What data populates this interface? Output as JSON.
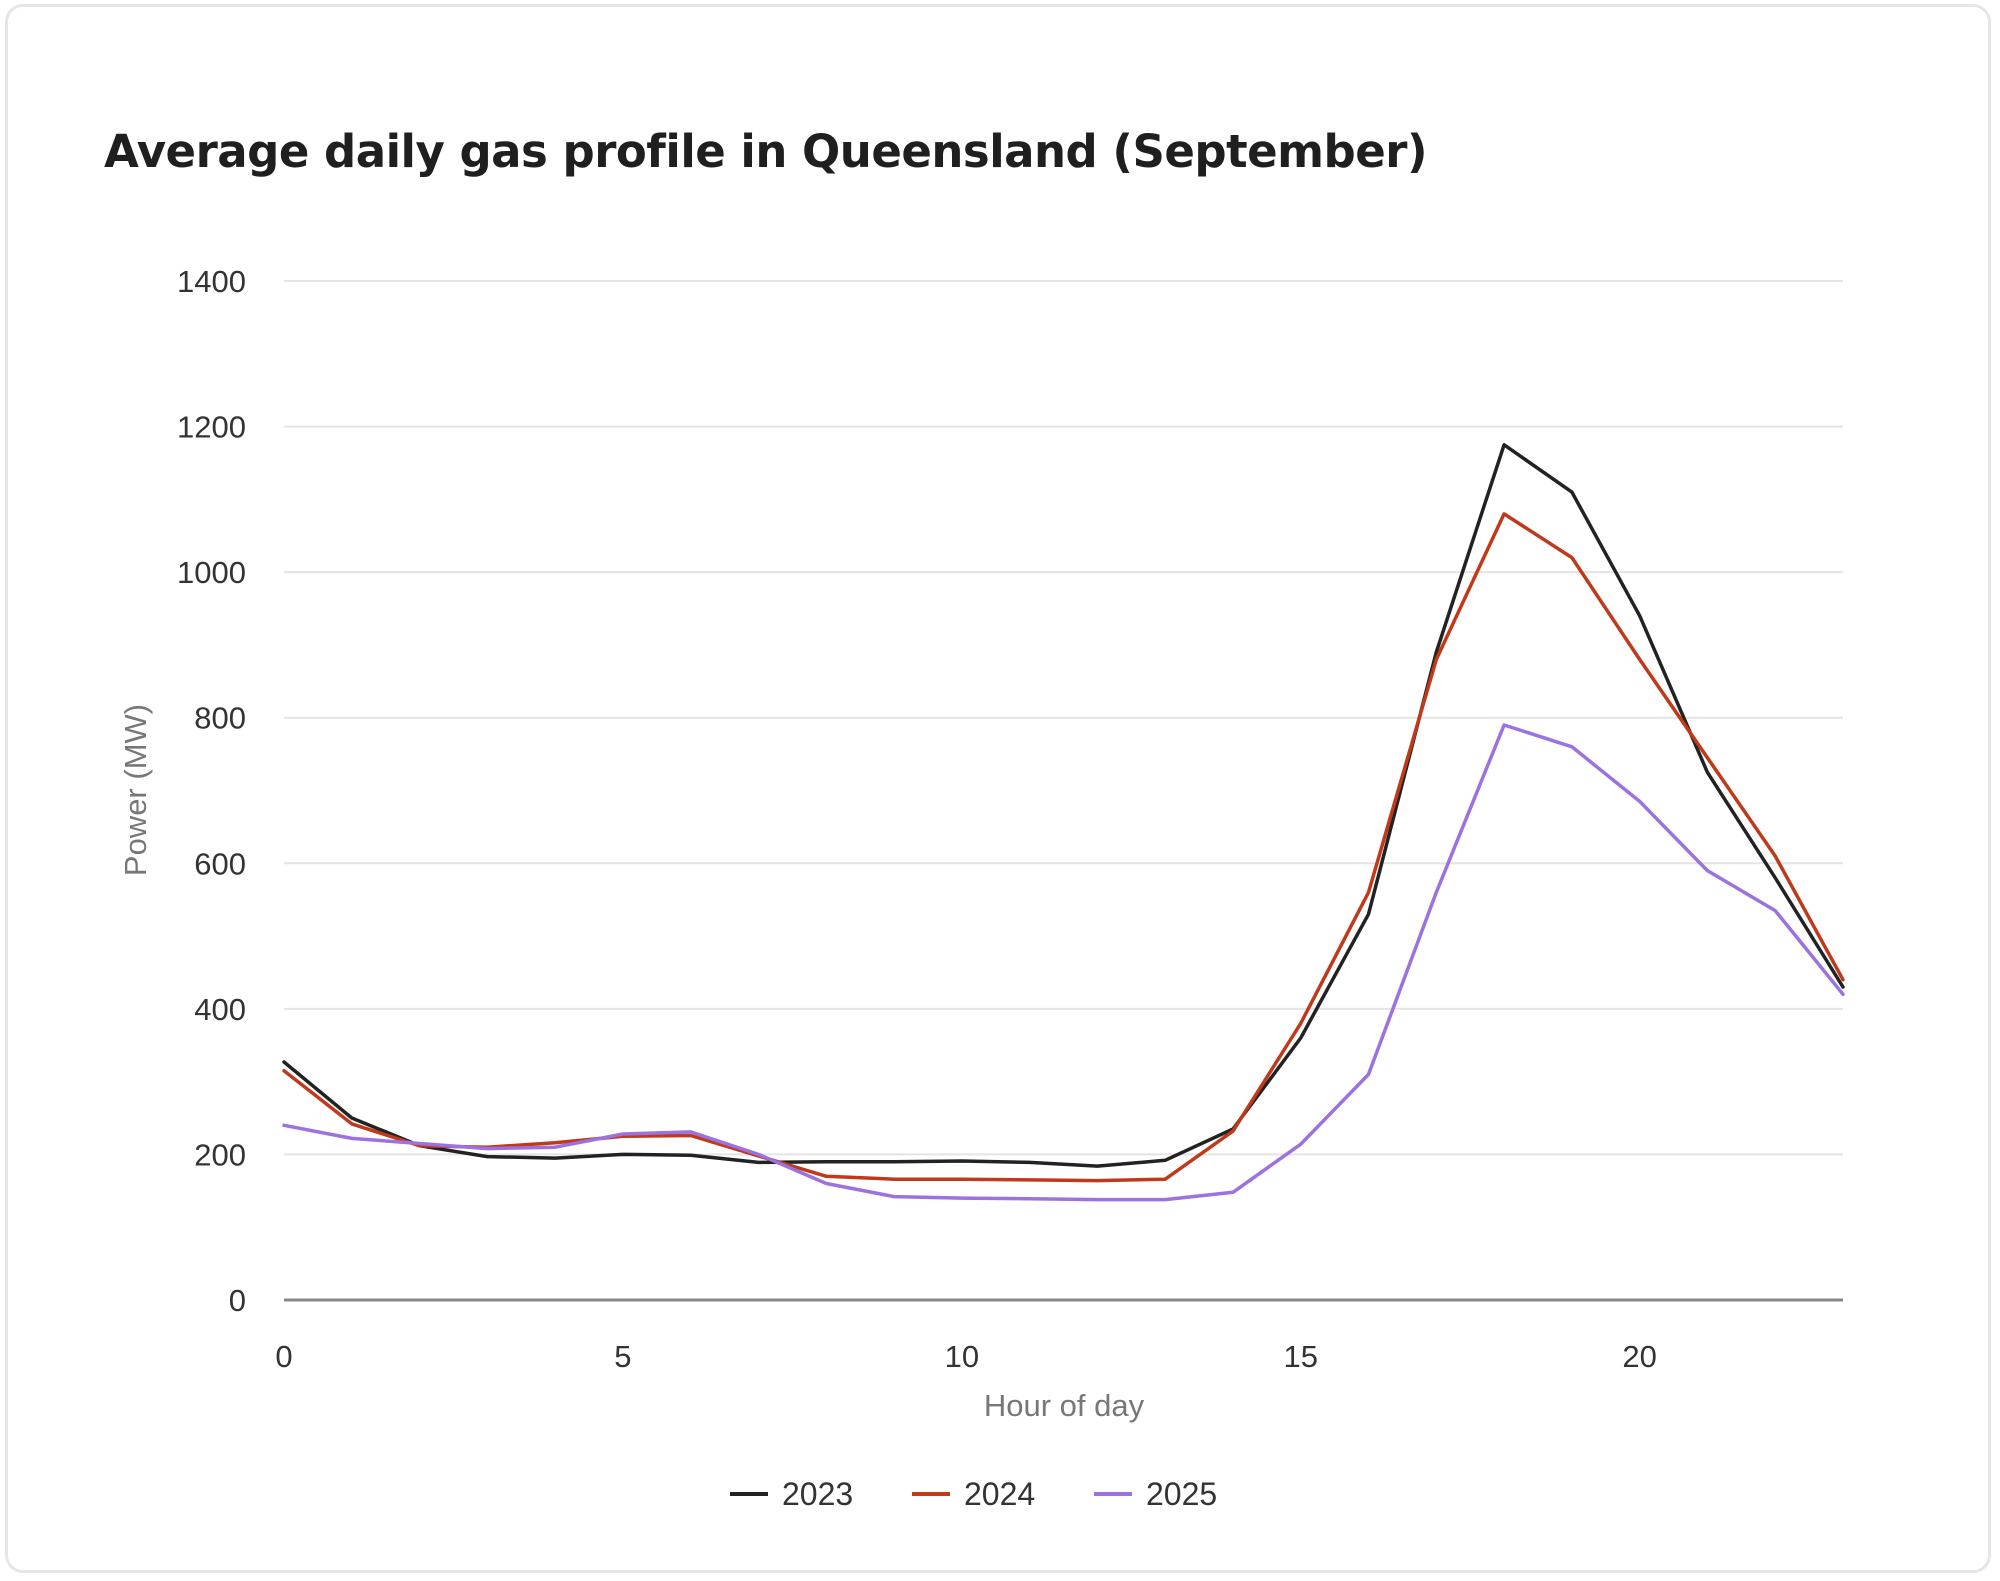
{
  "chart_data": {
    "type": "line",
    "title": "Average daily gas profile in Queensland (September)",
    "xlabel": "Hour of day",
    "ylabel": "Power (MW)",
    "xlim": [
      0,
      23
    ],
    "ylim": [
      0,
      1400
    ],
    "x_ticks": [
      0,
      5,
      10,
      15,
      20
    ],
    "y_ticks": [
      0,
      200,
      400,
      600,
      800,
      1000,
      1200,
      1400
    ],
    "grid": true,
    "legend_position": "bottom-center",
    "x": [
      0,
      1,
      2,
      3,
      4,
      5,
      6,
      7,
      8,
      9,
      10,
      11,
      12,
      13,
      14,
      15,
      16,
      17,
      18,
      19,
      20,
      21,
      22,
      23
    ],
    "series": [
      {
        "name": "2023",
        "color": "#222222",
        "values": [
          327,
          250,
          212,
          197,
          195,
          200,
          199,
          189,
          190,
          190,
          191,
          189,
          184,
          192,
          235,
          360,
          530,
          890,
          1175,
          1110,
          940,
          725,
          580,
          430
        ]
      },
      {
        "name": "2024",
        "color": "#c0391b",
        "values": [
          315,
          242,
          212,
          210,
          216,
          225,
          226,
          198,
          170,
          166,
          166,
          165,
          164,
          166,
          232,
          380,
          560,
          880,
          1080,
          1020,
          880,
          745,
          610,
          440
        ]
      },
      {
        "name": "2025",
        "color": "#9b72e0",
        "values": [
          240,
          222,
          215,
          208,
          210,
          228,
          231,
          200,
          160,
          142,
          140,
          139,
          138,
          138,
          148,
          214,
          310,
          560,
          790,
          760,
          685,
          590,
          535,
          420
        ]
      }
    ]
  }
}
